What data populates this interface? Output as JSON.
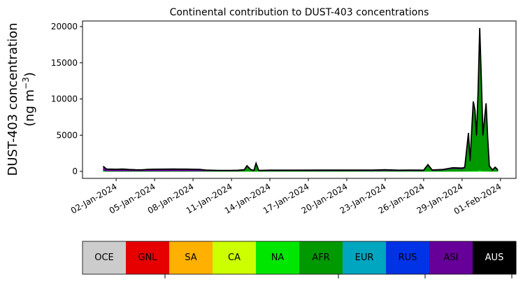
{
  "chart_data": {
    "type": "area",
    "stacked": true,
    "title": "Continental contribution to DUST-403 concentrations",
    "ylabel_line1": "DUST-403 concentration",
    "ylabel_line2": "(ng m",
    "ylabel_sup": "−3",
    "ylabel_close": ")",
    "xlim": [
      "2023-12-30T09:00",
      "2024-02-02T05:00"
    ],
    "ylim": [
      -966,
      20773
    ],
    "grid": false,
    "yticks": [
      0,
      5000,
      10000,
      15000,
      20000
    ],
    "xticks": [
      {
        "date": "2024-01-02",
        "label": "02-Jan-2024"
      },
      {
        "date": "2024-01-05",
        "label": "05-Jan-2024"
      },
      {
        "date": "2024-01-08",
        "label": "08-Jan-2024"
      },
      {
        "date": "2024-01-11",
        "label": "11-Jan-2024"
      },
      {
        "date": "2024-01-14",
        "label": "14-Jan-2024"
      },
      {
        "date": "2024-01-17",
        "label": "17-Jan-2024"
      },
      {
        "date": "2024-01-20",
        "label": "20-Jan-2024"
      },
      {
        "date": "2024-01-23",
        "label": "23-Jan-2024"
      },
      {
        "date": "2024-01-26",
        "label": "26-Jan-2024"
      },
      {
        "date": "2024-01-29",
        "label": "29-Jan-2024"
      },
      {
        "date": "2024-02-01",
        "label": "01-Feb-2024"
      }
    ],
    "x": [
      "2024-01-01T00:00",
      "2024-01-01T06:00",
      "2024-01-01T12:00",
      "2024-01-02T00:00",
      "2024-01-02T12:00",
      "2024-01-03T00:00",
      "2024-01-03T12:00",
      "2024-01-04T00:00",
      "2024-01-04T12:00",
      "2024-01-05T00:00",
      "2024-01-06T00:00",
      "2024-01-06T12:00",
      "2024-01-07T00:00",
      "2024-01-07T12:00",
      "2024-01-08T00:00",
      "2024-01-08T12:00",
      "2024-01-09T00:00",
      "2024-01-10T00:00",
      "2024-01-11T00:00",
      "2024-01-11T12:00",
      "2024-01-12T00:00",
      "2024-01-12T05:00",
      "2024-01-12T12:00",
      "2024-01-12T18:00",
      "2024-01-12T22:00",
      "2024-01-13T03:00",
      "2024-01-14T00:00",
      "2024-01-16T00:00",
      "2024-01-18T00:00",
      "2024-01-20T00:00",
      "2024-01-22T00:00",
      "2024-01-23T00:00",
      "2024-01-24T00:00",
      "2024-01-25T00:00",
      "2024-01-26T00:00",
      "2024-01-26T08:00",
      "2024-01-26T16:00",
      "2024-01-27T12:00",
      "2024-01-28T07:00",
      "2024-01-29T00:00",
      "2024-01-29T05:00",
      "2024-01-29T12:00",
      "2024-01-29T15:00",
      "2024-01-29T21:00",
      "2024-01-30T00:00",
      "2024-01-30T03:00",
      "2024-01-30T06:00",
      "2024-01-30T09:00",
      "2024-01-30T12:00",
      "2024-01-30T15:00",
      "2024-01-30T18:00",
      "2024-01-30T21:00",
      "2024-01-31T00:00",
      "2024-01-31T03:00",
      "2024-01-31T09:00",
      "2024-01-31T14:00",
      "2024-01-31T19:00"
    ],
    "series": [
      {
        "name": "NA",
        "color": "#00e600",
        "values": [
          20,
          20,
          20,
          20,
          20,
          20,
          20,
          20,
          20,
          20,
          20,
          20,
          20,
          20,
          20,
          20,
          20,
          20,
          20,
          20,
          20,
          40,
          20,
          20,
          40,
          20,
          20,
          20,
          20,
          20,
          20,
          20,
          20,
          20,
          20,
          40,
          20,
          20,
          30,
          30,
          40,
          80,
          60,
          100,
          90,
          70,
          120,
          200,
          140,
          70,
          100,
          110,
          60,
          30,
          20,
          30,
          20
        ]
      },
      {
        "name": "AFR",
        "color": "#009900",
        "values": [
          180,
          40,
          40,
          40,
          40,
          40,
          40,
          40,
          40,
          40,
          40,
          40,
          40,
          40,
          40,
          40,
          40,
          40,
          40,
          40,
          130,
          660,
          180,
          60,
          1010,
          60,
          60,
          70,
          60,
          70,
          60,
          80,
          60,
          70,
          60,
          800,
          90,
          150,
          370,
          300,
          400,
          5100,
          1300,
          9400,
          8300,
          4800,
          10850,
          19400,
          12500,
          4800,
          7050,
          9150,
          4500,
          650,
          110,
          480,
          110
        ]
      },
      {
        "name": "ASI",
        "color": "#660099",
        "values": [
          500,
          250,
          250,
          230,
          260,
          200,
          160,
          150,
          220,
          240,
          250,
          260,
          250,
          250,
          230,
          220,
          120,
          80,
          80,
          90,
          80,
          80,
          60,
          50,
          80,
          60,
          80,
          70,
          90,
          80,
          100,
          130,
          80,
          90,
          80,
          100,
          80,
          90,
          100,
          120,
          120,
          120,
          90,
          150,
          110,
          130,
          130,
          200,
          110,
          130,
          100,
          140,
          90,
          90,
          70,
          70,
          70
        ]
      }
    ],
    "total_line_color": "#000000"
  },
  "legend": {
    "items": [
      {
        "label": "OCE",
        "color": "#cccccc",
        "text_color": "#000000"
      },
      {
        "label": "GNL",
        "color": "#e60000",
        "text_color": "#000000"
      },
      {
        "label": "SA",
        "color": "#ffb000",
        "text_color": "#000000"
      },
      {
        "label": "CA",
        "color": "#ccff00",
        "text_color": "#000000"
      },
      {
        "label": "NA",
        "color": "#00e600",
        "text_color": "#000000"
      },
      {
        "label": "AFR",
        "color": "#009900",
        "text_color": "#000000"
      },
      {
        "label": "EUR",
        "color": "#00a5bf",
        "text_color": "#000000"
      },
      {
        "label": "RUS",
        "color": "#0033e6",
        "text_color": "#000000"
      },
      {
        "label": "ASI",
        "color": "#660099",
        "text_color": "#000000"
      },
      {
        "label": "AUS",
        "color": "#000000",
        "text_color": "#ffffff"
      }
    ]
  }
}
